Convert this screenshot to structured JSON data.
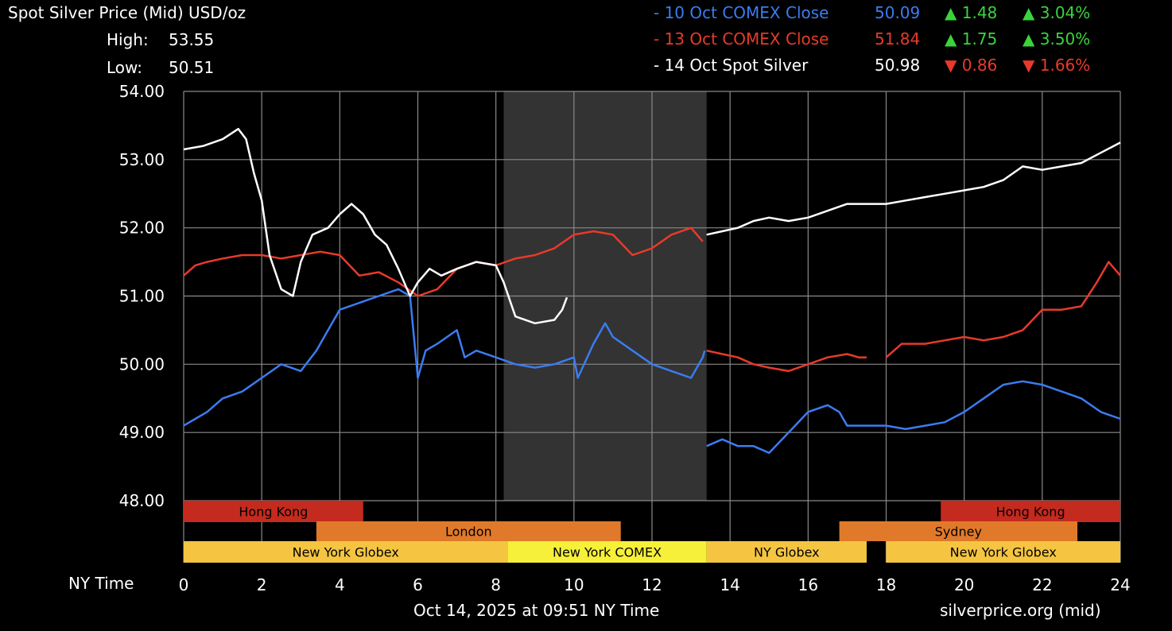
{
  "header": {
    "title": "Spot Silver Price (Mid) USD/oz",
    "high_label": "High:",
    "high_value": "53.55",
    "low_label": "Low:",
    "low_value": "50.51"
  },
  "legend": [
    {
      "name": "- 10 Oct COMEX Close",
      "price": "50.09",
      "change": "▲ 1.48",
      "pct": "▲ 3.04%",
      "color": "#3b7cf0",
      "change_color": "#3ad43a"
    },
    {
      "name": "- 13 Oct COMEX Close",
      "price": "51.84",
      "change": "▲ 1.75",
      "pct": "▲ 3.50%",
      "color": "#e83a2a",
      "change_color": "#3ad43a"
    },
    {
      "name": "- 14 Oct Spot Silver",
      "price": "50.98",
      "change": "▼ 0.86",
      "pct": "▼ 1.66%",
      "color": "#ffffff",
      "change_color": "#e83a2a"
    }
  ],
  "footer": {
    "x_axis_label": "NY Time",
    "timestamp": "Oct 14, 2025 at 09:51 NY Time",
    "source": "silverprice.org (mid)"
  },
  "sessions": [
    {
      "label": "Hong Kong",
      "start": 0,
      "end": 4.6,
      "row": 0,
      "color": "#c42a1e"
    },
    {
      "label": "Hong Kong",
      "start": 19.4,
      "end": 24,
      "row": 0,
      "color": "#c42a1e"
    },
    {
      "label": "London",
      "start": 3.4,
      "end": 11.2,
      "row": 1,
      "color": "#e07a2a"
    },
    {
      "label": "Sydney",
      "start": 16.8,
      "end": 22.9,
      "row": 1,
      "color": "#e07a2a"
    },
    {
      "label": "New York Globex",
      "start": 0,
      "end": 8.3,
      "row": 2,
      "color": "#f5c542"
    },
    {
      "label": "New York COMEX",
      "start": 8.3,
      "end": 13.4,
      "row": 2,
      "color": "#f7f03a"
    },
    {
      "label": "NY Globex",
      "start": 13.4,
      "end": 17.5,
      "row": 2,
      "color": "#f5c542"
    },
    {
      "label": "New York Globex",
      "start": 18.0,
      "end": 24,
      "row": 2,
      "color": "#f5c542"
    }
  ],
  "chart_data": {
    "type": "line",
    "xlim": [
      0,
      24
    ],
    "ylim": [
      47.0,
      54.0
    ],
    "x_ticks": [
      "0",
      "2",
      "4",
      "6",
      "8",
      "10",
      "12",
      "14",
      "16",
      "18",
      "20",
      "22",
      "24"
    ],
    "y_ticks": [
      "48.00",
      "49.00",
      "50.00",
      "51.00",
      "52.00",
      "53.00",
      "54.00"
    ],
    "shaded_region": [
      8.2,
      13.4
    ],
    "grid": true,
    "series": [
      {
        "name": "10 Oct COMEX Close",
        "color": "#3b7cf0",
        "segments": [
          [
            [
              0,
              49.1
            ],
            [
              0.3,
              49.2
            ],
            [
              0.6,
              49.3
            ],
            [
              1,
              49.5
            ],
            [
              1.5,
              49.6
            ],
            [
              2,
              49.8
            ],
            [
              2.5,
              50.0
            ],
            [
              3,
              49.9
            ],
            [
              3.4,
              50.2
            ],
            [
              3.7,
              50.5
            ],
            [
              4,
              50.8
            ],
            [
              4.5,
              50.9
            ],
            [
              5,
              51.0
            ],
            [
              5.5,
              51.1
            ],
            [
              5.8,
              51.0
            ],
            [
              5.9,
              50.4
            ],
            [
              6.0,
              49.8
            ],
            [
              6.2,
              50.2
            ],
            [
              6.5,
              50.3
            ],
            [
              7,
              50.5
            ],
            [
              7.2,
              50.1
            ],
            [
              7.5,
              50.2
            ],
            [
              8,
              50.1
            ],
            [
              8.5,
              50.0
            ],
            [
              9,
              49.95
            ],
            [
              9.5,
              50.0
            ],
            [
              10,
              50.1
            ],
            [
              10.1,
              49.8
            ],
            [
              10.5,
              50.3
            ],
            [
              10.8,
              50.6
            ],
            [
              11,
              50.4
            ],
            [
              11.5,
              50.2
            ],
            [
              12,
              50.0
            ],
            [
              12.5,
              49.9
            ],
            [
              13,
              49.8
            ],
            [
              13.3,
              50.1
            ],
            [
              13.35,
              50.2
            ]
          ],
          [
            [
              13.4,
              48.8
            ],
            [
              13.8,
              48.9
            ],
            [
              14.2,
              48.8
            ],
            [
              14.6,
              48.8
            ],
            [
              15,
              48.7
            ],
            [
              15.5,
              49.0
            ],
            [
              16,
              49.3
            ],
            [
              16.5,
              49.4
            ],
            [
              16.8,
              49.3
            ],
            [
              17,
              49.1
            ],
            [
              18,
              49.1
            ],
            [
              18.5,
              49.05
            ],
            [
              19,
              49.1
            ],
            [
              19.5,
              49.15
            ],
            [
              20,
              49.3
            ],
            [
              20.5,
              49.5
            ],
            [
              21,
              49.7
            ],
            [
              21.5,
              49.75
            ],
            [
              22,
              49.7
            ],
            [
              22.5,
              49.6
            ],
            [
              23,
              49.5
            ],
            [
              23.5,
              49.3
            ],
            [
              24,
              49.2
            ]
          ]
        ]
      },
      {
        "name": "13 Oct COMEX Close",
        "color": "#e83a2a",
        "segments": [
          [
            [
              0,
              51.3
            ],
            [
              0.3,
              51.45
            ],
            [
              0.6,
              51.5
            ],
            [
              1,
              51.55
            ],
            [
              1.5,
              51.6
            ],
            [
              2,
              51.6
            ],
            [
              2.5,
              51.55
            ],
            [
              3,
              51.6
            ],
            [
              3.5,
              51.65
            ],
            [
              4,
              51.6
            ],
            [
              4.5,
              51.3
            ],
            [
              5,
              51.35
            ],
            [
              5.5,
              51.2
            ],
            [
              6,
              51.0
            ],
            [
              6.5,
              51.1
            ],
            [
              7,
              51.4
            ],
            [
              7.5,
              51.5
            ],
            [
              8,
              51.45
            ],
            [
              8.5,
              51.55
            ],
            [
              9,
              51.6
            ],
            [
              9.5,
              51.7
            ],
            [
              10,
              51.9
            ],
            [
              10.5,
              51.95
            ],
            [
              11,
              51.9
            ],
            [
              11.5,
              51.6
            ],
            [
              12,
              51.7
            ],
            [
              12.5,
              51.9
            ],
            [
              13,
              52.0
            ],
            [
              13.3,
              51.8
            ]
          ],
          [
            [
              13.4,
              50.2
            ],
            [
              13.8,
              50.15
            ],
            [
              14.2,
              50.1
            ],
            [
              14.6,
              50.0
            ],
            [
              15,
              49.95
            ],
            [
              15.5,
              49.9
            ],
            [
              16,
              50.0
            ],
            [
              16.5,
              50.1
            ],
            [
              17,
              50.15
            ],
            [
              17.3,
              50.1
            ],
            [
              17.5,
              50.1
            ]
          ],
          [
            [
              18.0,
              50.1
            ],
            [
              18.4,
              50.3
            ],
            [
              19,
              50.3
            ],
            [
              19.5,
              50.35
            ],
            [
              20,
              50.4
            ],
            [
              20.5,
              50.35
            ],
            [
              21,
              50.4
            ],
            [
              21.5,
              50.5
            ],
            [
              22,
              50.8
            ],
            [
              22.5,
              50.8
            ],
            [
              23,
              50.85
            ],
            [
              23.4,
              51.2
            ],
            [
              23.7,
              51.5
            ],
            [
              24,
              51.3
            ]
          ]
        ]
      },
      {
        "name": "14 Oct Spot Silver",
        "color": "#ffffff",
        "segments": [
          [
            [
              0,
              53.15
            ],
            [
              0.5,
              53.2
            ],
            [
              1,
              53.3
            ],
            [
              1.4,
              53.45
            ],
            [
              1.6,
              53.3
            ],
            [
              1.8,
              52.8
            ],
            [
              2,
              52.4
            ],
            [
              2.2,
              51.6
            ],
            [
              2.5,
              51.1
            ],
            [
              2.8,
              51.0
            ],
            [
              3,
              51.5
            ],
            [
              3.3,
              51.9
            ],
            [
              3.7,
              52.0
            ],
            [
              4,
              52.2
            ],
            [
              4.3,
              52.35
            ],
            [
              4.6,
              52.2
            ],
            [
              4.9,
              51.9
            ],
            [
              5.2,
              51.75
            ],
            [
              5.5,
              51.4
            ],
            [
              5.8,
              51.0
            ],
            [
              6.0,
              51.2
            ],
            [
              6.3,
              51.4
            ],
            [
              6.6,
              51.3
            ],
            [
              7,
              51.4
            ],
            [
              7.5,
              51.5
            ],
            [
              8,
              51.45
            ],
            [
              8.2,
              51.2
            ],
            [
              8.5,
              50.7
            ],
            [
              9,
              50.6
            ],
            [
              9.5,
              50.65
            ],
            [
              9.7,
              50.8
            ],
            [
              9.82,
              50.98
            ]
          ],
          [
            [
              13.4,
              51.9
            ],
            [
              13.8,
              51.95
            ],
            [
              14.2,
              52.0
            ],
            [
              14.6,
              52.1
            ],
            [
              15,
              52.15
            ],
            [
              15.5,
              52.1
            ],
            [
              16,
              52.15
            ],
            [
              16.5,
              52.25
            ],
            [
              17,
              52.35
            ],
            [
              17.5,
              52.35
            ],
            [
              18,
              52.35
            ],
            [
              18.5,
              52.4
            ],
            [
              19,
              52.45
            ],
            [
              19.5,
              52.5
            ],
            [
              20,
              52.55
            ],
            [
              20.5,
              52.6
            ],
            [
              21,
              52.7
            ],
            [
              21.5,
              52.9
            ],
            [
              22,
              52.85
            ],
            [
              22.5,
              52.9
            ],
            [
              23,
              52.95
            ],
            [
              23.5,
              53.1
            ],
            [
              24,
              53.25
            ]
          ]
        ]
      }
    ]
  }
}
